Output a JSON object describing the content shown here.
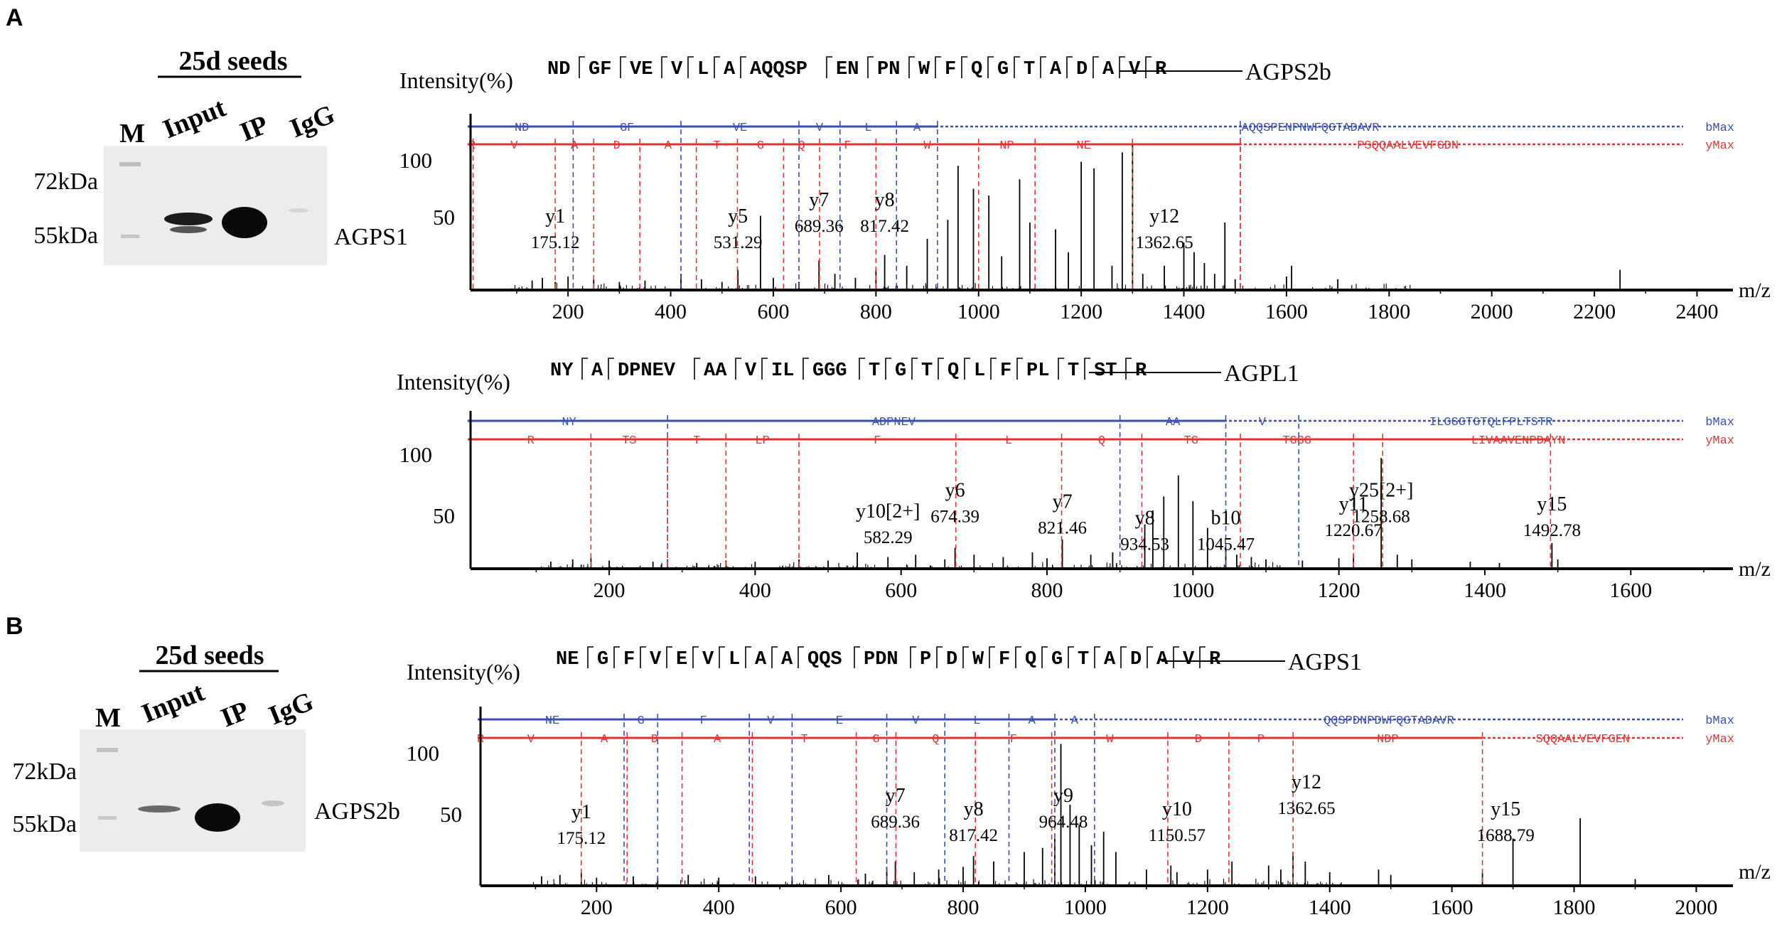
{
  "figure": {
    "panels": [
      {
        "letter": "A",
        "blot": {
          "title": "25d seeds",
          "lanes": [
            "M",
            "Input",
            "IP",
            "IgG"
          ],
          "markers": [
            "72kDa",
            "55kDa"
          ],
          "protein": "AGPS1"
        },
        "spectra": [
          {
            "protein": "AGPS2b",
            "sequence": [
              "ND",
              "GF",
              "VE",
              "V",
              "L",
              "A",
              "AQQSP",
              "EN",
              "PN",
              "W",
              "F",
              "Q",
              "G",
              "T",
              "A",
              "D",
              "A",
              "V",
              "R"
            ],
            "b_series_label": "bMax",
            "y_series_label": "yMax",
            "b_fragments": [
              "ND",
              "GF",
              "VE",
              "V",
              "L",
              "A",
              "AQQSPENPNWFQGTADAVR"
            ],
            "y_fragments": [
              "R",
              "V",
              "A",
              "D",
              "A",
              "T",
              "G",
              "Q",
              "F",
              "W",
              "NP",
              "NE",
              "PSQQAALVEVFGDN"
            ]
          },
          {
            "protein": "AGPL1",
            "sequence": [
              "NY",
              "A",
              "DPNEV",
              "AA",
              "V",
              "IL",
              "GGG",
              "T",
              "G",
              "T",
              "Q",
              "L",
              "F",
              "PL",
              "T",
              "ST",
              "R"
            ],
            "b_series_label": "bMax",
            "y_series_label": "yMax",
            "b_fragments": [
              "NY",
              "ADPNEV",
              "AA",
              "V",
              "ILGGGTGTQLFPLTSTR"
            ],
            "y_fragments": [
              "R",
              "TS",
              "T",
              "LP",
              "F",
              "L",
              "Q",
              "TG",
              "TGGG",
              "LIVAAVENPDAYN"
            ]
          }
        ]
      },
      {
        "letter": "B",
        "blot": {
          "title": "25d seeds",
          "lanes": [
            "M",
            "Input",
            "IP",
            "IgG"
          ],
          "markers": [
            "72kDa",
            "55kDa"
          ],
          "protein": "AGPS2b"
        },
        "spectra": [
          {
            "protein": "AGPS1",
            "sequence": [
              "NE",
              "G",
              "F",
              "V",
              "E",
              "V",
              "L",
              "A",
              "A",
              "QQS",
              "PDN",
              "P",
              "D",
              "W",
              "F",
              "Q",
              "G",
              "T",
              "A",
              "D",
              "A",
              "V",
              "R"
            ],
            "b_series_label": "bMax",
            "y_series_label": "yMax",
            "b_fragments": [
              "NE",
              "G",
              "F",
              "V",
              "E",
              "V",
              "L",
              "A",
              "A",
              "QQSPDNPDWFQGTADAVR"
            ],
            "y_fragments": [
              "R",
              "V",
              "A",
              "D",
              "A",
              "T",
              "G",
              "Q",
              "F",
              "W",
              "D",
              "P",
              "NDP",
              "SQQAALVEVFGEN"
            ]
          }
        ]
      }
    ],
    "axis": {
      "ylabel": "Intensity(%)",
      "xlabel": "m/z",
      "yticks": [
        "100",
        "50"
      ]
    }
  },
  "chart_data": [
    {
      "type": "bar",
      "protein": "AGPS2b",
      "xlabel": "m/z",
      "ylabel": "Intensity(%)",
      "xlim": [
        10,
        2470
      ],
      "ylim": [
        0,
        100
      ],
      "xticks": [
        200,
        400,
        600,
        800,
        1000,
        1200,
        1400,
        1600,
        1800,
        2000,
        2200,
        2400
      ],
      "yticks": [
        50,
        100
      ],
      "b_marks": [
        210,
        420,
        650,
        730,
        840,
        920,
        1510
      ],
      "y_marks": [
        15,
        175,
        250,
        340,
        450,
        530,
        620,
        690,
        800,
        1000,
        1110,
        1300,
        1510
      ],
      "ion_labels": [
        {
          "ion": "y1",
          "mz": "175.12",
          "x": 175,
          "y": 50
        },
        {
          "ion": "y5",
          "mz": "531.29",
          "x": 531,
          "y": 50
        },
        {
          "ion": "y7",
          "mz": "689.36",
          "x": 689,
          "y": 62
        },
        {
          "ion": "y8",
          "mz": "817.42",
          "x": 817,
          "y": 62
        },
        {
          "ion": "y12",
          "mz": "1362.65",
          "x": 1362,
          "y": 50
        }
      ],
      "peaks": [
        [
          130,
          7
        ],
        [
          150,
          9
        ],
        [
          175,
          6
        ],
        [
          200,
          10
        ],
        [
          250,
          8
        ],
        [
          300,
          6
        ],
        [
          350,
          7
        ],
        [
          420,
          12
        ],
        [
          460,
          8
        ],
        [
          500,
          6
        ],
        [
          531,
          15
        ],
        [
          575,
          55
        ],
        [
          600,
          9
        ],
        [
          650,
          6
        ],
        [
          689,
          22
        ],
        [
          720,
          12
        ],
        [
          760,
          9
        ],
        [
          800,
          15
        ],
        [
          817,
          26
        ],
        [
          860,
          18
        ],
        [
          900,
          38
        ],
        [
          940,
          52
        ],
        [
          960,
          92
        ],
        [
          990,
          75
        ],
        [
          1020,
          70
        ],
        [
          1045,
          25
        ],
        [
          1080,
          82
        ],
        [
          1100,
          50
        ],
        [
          1150,
          45
        ],
        [
          1175,
          28
        ],
        [
          1200,
          95
        ],
        [
          1225,
          90
        ],
        [
          1260,
          18
        ],
        [
          1280,
          102
        ],
        [
          1300,
          108
        ],
        [
          1320,
          12
        ],
        [
          1362,
          18
        ],
        [
          1400,
          35
        ],
        [
          1420,
          28
        ],
        [
          1440,
          20
        ],
        [
          1460,
          12
        ],
        [
          1480,
          50
        ],
        [
          1500,
          8
        ],
        [
          1600,
          10
        ],
        [
          1610,
          18
        ],
        [
          1700,
          8
        ],
        [
          2250,
          15
        ]
      ]
    },
    {
      "type": "bar",
      "protein": "AGPL1",
      "xlabel": "m/z",
      "ylabel": "Intensity(%)",
      "xlim": [
        10,
        1740
      ],
      "ylim": [
        0,
        100
      ],
      "xticks": [
        200,
        400,
        600,
        800,
        1000,
        1200,
        1400,
        1600
      ],
      "yticks": [
        50,
        100
      ],
      "b_marks": [
        280,
        900,
        1045,
        1145
      ],
      "y_marks": [
        175,
        280,
        360,
        460,
        675,
        820,
        930,
        1065,
        1220,
        1260,
        1490
      ],
      "ion_labels": [
        {
          "ion": "y10[2+]",
          "mz": "582.29",
          "x": 582,
          "y": 44
        },
        {
          "ion": "y6",
          "mz": "674.39",
          "x": 674,
          "y": 62
        },
        {
          "ion": "y7",
          "mz": "821.46",
          "x": 821,
          "y": 52
        },
        {
          "ion": "y8",
          "mz": "934.53",
          "x": 934,
          "y": 38
        },
        {
          "ion": "b10",
          "mz": "1045.47",
          "x": 1045,
          "y": 38
        },
        {
          "ion": "y11",
          "mz": "1220.67",
          "x": 1220,
          "y": 50
        },
        {
          "ion": "y25[2+]",
          "mz": "1258.68",
          "x": 1258,
          "y": 62
        },
        {
          "ion": "y15",
          "mz": "1492.78",
          "x": 1492,
          "y": 50
        }
      ],
      "peaks": [
        [
          120,
          6
        ],
        [
          150,
          8
        ],
        [
          175,
          9
        ],
        [
          200,
          7
        ],
        [
          260,
          6
        ],
        [
          280,
          8
        ],
        [
          320,
          5
        ],
        [
          360,
          7
        ],
        [
          400,
          6
        ],
        [
          460,
          8
        ],
        [
          500,
          7
        ],
        [
          540,
          14
        ],
        [
          582,
          10
        ],
        [
          620,
          12
        ],
        [
          660,
          8
        ],
        [
          674,
          18
        ],
        [
          700,
          12
        ],
        [
          740,
          10
        ],
        [
          780,
          14
        ],
        [
          800,
          9
        ],
        [
          821,
          25
        ],
        [
          860,
          12
        ],
        [
          890,
          14
        ],
        [
          934,
          38
        ],
        [
          945,
          50
        ],
        [
          960,
          62
        ],
        [
          980,
          80
        ],
        [
          1000,
          58
        ],
        [
          1020,
          35
        ],
        [
          1045,
          20
        ],
        [
          1060,
          12
        ],
        [
          1080,
          10
        ],
        [
          1100,
          8
        ],
        [
          1150,
          7
        ],
        [
          1200,
          9
        ],
        [
          1220,
          12
        ],
        [
          1258,
          95
        ],
        [
          1280,
          12
        ],
        [
          1300,
          8
        ],
        [
          1380,
          6
        ],
        [
          1420,
          5
        ],
        [
          1492,
          22
        ],
        [
          1500,
          8
        ]
      ]
    },
    {
      "type": "bar",
      "protein": "AGPS1",
      "xlabel": "m/z",
      "ylabel": "Intensity(%)",
      "xlim": [
        10,
        2060
      ],
      "ylim": [
        0,
        100
      ],
      "xticks": [
        200,
        400,
        600,
        800,
        1000,
        1200,
        1400,
        1600,
        1800,
        2000
      ],
      "yticks": [
        50,
        100
      ],
      "b_marks": [
        245,
        300,
        450,
        520,
        675,
        770,
        875,
        950,
        1015
      ],
      "y_marks": [
        10,
        175,
        250,
        340,
        455,
        625,
        690,
        820,
        945,
        1135,
        1235,
        1340,
        1650
      ],
      "ion_labels": [
        {
          "ion": "y1",
          "mz": "175.12",
          "x": 175,
          "y": 50
        },
        {
          "ion": "y7",
          "mz": "689.36",
          "x": 689,
          "y": 62
        },
        {
          "ion": "y8",
          "mz": "817.42",
          "x": 817,
          "y": 52
        },
        {
          "ion": "y9",
          "mz": "964.48",
          "x": 964,
          "y": 62
        },
        {
          "ion": "y10",
          "mz": "1150.57",
          "x": 1150,
          "y": 52
        },
        {
          "ion": "y12",
          "mz": "1362.65",
          "x": 1362,
          "y": 72
        },
        {
          "ion": "y15",
          "mz": "1688.79",
          "x": 1688,
          "y": 52
        }
      ],
      "peaks": [
        [
          110,
          7
        ],
        [
          140,
          8
        ],
        [
          175,
          10
        ],
        [
          200,
          6
        ],
        [
          260,
          7
        ],
        [
          300,
          6
        ],
        [
          350,
          8
        ],
        [
          400,
          6
        ],
        [
          460,
          7
        ],
        [
          520,
          6
        ],
        [
          580,
          8
        ],
        [
          640,
          9
        ],
        [
          675,
          14
        ],
        [
          689,
          18
        ],
        [
          720,
          10
        ],
        [
          760,
          12
        ],
        [
          800,
          14
        ],
        [
          817,
          22
        ],
        [
          850,
          18
        ],
        [
          900,
          25
        ],
        [
          930,
          28
        ],
        [
          950,
          35
        ],
        [
          960,
          105
        ],
        [
          975,
          60
        ],
        [
          990,
          45
        ],
        [
          1010,
          30
        ],
        [
          1030,
          40
        ],
        [
          1050,
          25
        ],
        [
          1100,
          12
        ],
        [
          1140,
          15
        ],
        [
          1150,
          10
        ],
        [
          1200,
          12
        ],
        [
          1240,
          18
        ],
        [
          1300,
          15
        ],
        [
          1320,
          12
        ],
        [
          1340,
          25
        ],
        [
          1360,
          18
        ],
        [
          1400,
          10
        ],
        [
          1480,
          12
        ],
        [
          1500,
          8
        ],
        [
          1650,
          10
        ],
        [
          1700,
          35
        ],
        [
          1810,
          50
        ],
        [
          1900,
          5
        ]
      ]
    }
  ]
}
